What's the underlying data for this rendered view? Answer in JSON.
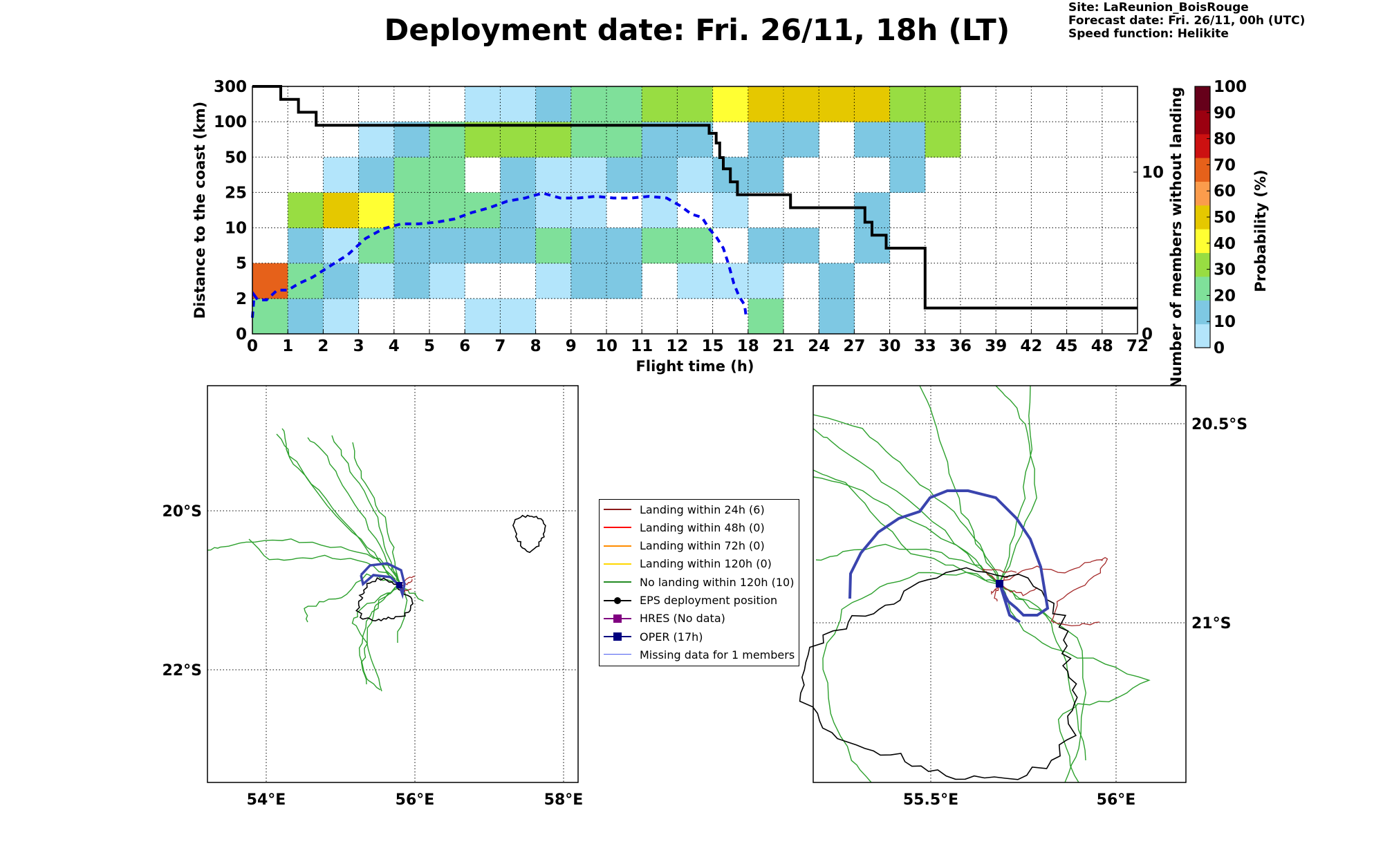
{
  "title": "Deployment date: Fri. 26/11, 18h (LT)",
  "info": {
    "site": "Site: LaReunion_BoisRouge",
    "forecast": "Forecast date: Fri. 26/11, 00h (UTC)",
    "speed": "Speed function: Helikite"
  },
  "chart_data": [
    {
      "type": "heatmap",
      "title": "",
      "xlabel": "Flight time (h)",
      "ylabel": "Distance to the coast (km)",
      "ylabel_right": "Number of members without landing",
      "x_ticks": [
        "0",
        "1",
        "2",
        "3",
        "4",
        "5",
        "6",
        "7",
        "8",
        "9",
        "10",
        "11",
        "12",
        "15",
        "18",
        "21",
        "24",
        "27",
        "30",
        "33",
        "36",
        "39",
        "42",
        "45",
        "48",
        "72"
      ],
      "y_ticks": [
        "0",
        "2",
        "5",
        "10",
        "25",
        "50",
        "100",
        "300"
      ],
      "y_right_ticks": [
        "0",
        "10"
      ],
      "y_right_range": [
        0,
        15.3
      ],
      "colorbar": {
        "label": "Probability (%)",
        "ticks": [
          "0",
          "10",
          "20",
          "30",
          "40",
          "50",
          "60",
          "70",
          "80",
          "90",
          "100"
        ],
        "colors": [
          "#b3e5fb",
          "#7ec8e3",
          "#7fe09a",
          "#98dd42",
          "#ffff33",
          "#e5c800",
          "#fb9c4c",
          "#e6611a",
          "#cc1111",
          "#9b0010",
          "#66001a"
        ]
      },
      "grid": true,
      "cells_note": "rows from bottom (0-2 km) to top (100-300 km); columns = 25 flight-time intervals; value = probability (%) bin lower bound, null = empty",
      "cells": [
        [
          20,
          10,
          0,
          null,
          null,
          null,
          0,
          0,
          null,
          null,
          null,
          null,
          null,
          null,
          20,
          null,
          10,
          null,
          null,
          null,
          null,
          null,
          null,
          null,
          null
        ],
        [
          70,
          20,
          10,
          0,
          10,
          0,
          null,
          null,
          0,
          10,
          10,
          null,
          0,
          0,
          0,
          null,
          10,
          null,
          null,
          null,
          null,
          null,
          null,
          null,
          null
        ],
        [
          null,
          10,
          0,
          20,
          10,
          10,
          10,
          10,
          20,
          10,
          10,
          20,
          20,
          null,
          10,
          10,
          null,
          10,
          null,
          null,
          null,
          null,
          null,
          null,
          null
        ],
        [
          null,
          30,
          50,
          40,
          20,
          20,
          20,
          10,
          0,
          0,
          null,
          0,
          null,
          0,
          null,
          null,
          null,
          10,
          null,
          null,
          null,
          null,
          null,
          null,
          null
        ],
        [
          null,
          null,
          0,
          10,
          20,
          20,
          null,
          10,
          0,
          0,
          10,
          10,
          0,
          10,
          10,
          null,
          null,
          null,
          10,
          null,
          null,
          null,
          null,
          null,
          null
        ],
        [
          null,
          null,
          null,
          0,
          10,
          20,
          30,
          30,
          30,
          20,
          20,
          10,
          10,
          null,
          10,
          10,
          null,
          10,
          10,
          30,
          null,
          null,
          null,
          null,
          null
        ],
        [
          null,
          null,
          null,
          null,
          null,
          null,
          0,
          0,
          10,
          20,
          20,
          30,
          30,
          40,
          50,
          50,
          50,
          50,
          30,
          30,
          null,
          null,
          null,
          null,
          null
        ]
      ],
      "series": [
        {
          "name": "",
          "style": "solid black step",
          "x_index": [
            0,
            0.8,
            0.8,
            1.3,
            1.3,
            1.8,
            1.8,
            12.9,
            12.9,
            13.1,
            13.1,
            13.2,
            13.2,
            13.3,
            13.3,
            13.5,
            13.5,
            13.7,
            13.7,
            15.2,
            15.2,
            17.3,
            17.3,
            17.5,
            17.5,
            17.9,
            17.9,
            19.0,
            19.0,
            25.0
          ],
          "y_members": [
            15.3,
            15.3,
            14.5,
            14.5,
            13.7,
            13.7,
            12.9,
            12.9,
            12.4,
            12.4,
            11.8,
            11.8,
            10.9,
            10.9,
            10.2,
            10.2,
            9.4,
            9.4,
            8.6,
            8.6,
            7.8,
            7.8,
            6.9,
            6.9,
            6.1,
            6.1,
            5.3,
            5.3,
            1.6,
            1.6
          ]
        },
        {
          "name": "",
          "style": "dashed blue",
          "x_index": [
            0,
            0.05,
            0.15,
            0.4,
            0.7,
            1.0,
            1.3,
            1.7,
            2.2,
            2.7,
            3.2,
            3.7,
            4.2,
            4.7,
            5.2,
            5.7,
            6.2,
            6.7,
            7.2,
            7.7,
            8.2,
            8.7,
            9.2,
            9.7,
            10.2,
            10.7,
            11.2,
            11.7,
            12.1,
            12.4,
            12.7,
            12.9,
            13.1,
            13.3,
            13.45,
            13.6,
            13.75,
            13.9,
            13.95
          ],
          "y_members": [
            1.0,
            2.4,
            2.1,
            2.1,
            2.7,
            2.7,
            3.1,
            3.5,
            4.2,
            4.9,
            5.9,
            6.5,
            6.8,
            6.8,
            6.9,
            7.1,
            7.5,
            7.8,
            8.2,
            8.4,
            8.7,
            8.4,
            8.4,
            8.5,
            8.4,
            8.4,
            8.5,
            8.4,
            7.9,
            7.4,
            7.2,
            6.5,
            6.0,
            5.3,
            4.3,
            3.1,
            2.3,
            1.8,
            1.0
          ]
        }
      ]
    },
    {
      "type": "map",
      "title": "",
      "x_ticks": [
        "54°E",
        "56°E",
        "58°E"
      ],
      "y_ticks": [
        "20°S",
        "22°S"
      ],
      "grid": true
    },
    {
      "type": "map",
      "title": "",
      "x_ticks": [
        "55.5°E",
        "56°E"
      ],
      "y_ticks": [
        "20.5°S",
        "21°S"
      ],
      "grid": true
    }
  ],
  "legend": [
    {
      "label": "Landing within 24h (6)",
      "color": "#8b1a1a",
      "kind": "line"
    },
    {
      "label": "Landing within 48h (0)",
      "color": "#ff0000",
      "kind": "line"
    },
    {
      "label": "Landing within 72h (0)",
      "color": "#ff8c00",
      "kind": "line"
    },
    {
      "label": "Landing within 120h (0)",
      "color": "#ffd700",
      "kind": "line"
    },
    {
      "label": "No landing within 120h (10)",
      "color": "#228b22",
      "kind": "line"
    },
    {
      "label": "EPS deployment position",
      "color": "#000000",
      "kind": "dot"
    },
    {
      "label": "HRES (No data)",
      "color": "#800080",
      "kind": "square"
    },
    {
      "label": "OPER (17h)",
      "color": "#00007f",
      "kind": "square"
    },
    {
      "label": "Missing data for 1 members",
      "color": "#4b5cf0",
      "kind": "thin"
    }
  ]
}
